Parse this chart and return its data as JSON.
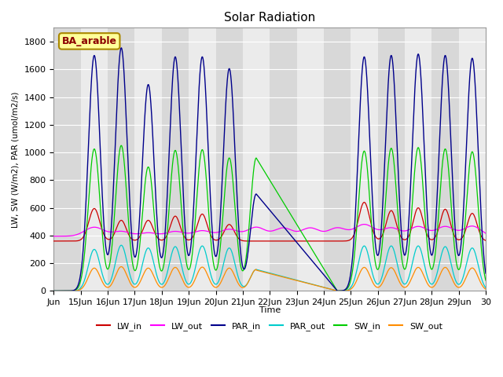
{
  "title": "Solar Radiation",
  "ylabel": "LW, SW (W/m2), PAR (umol/m2/s)",
  "xlabel": "Time",
  "annotation": "BA_arable",
  "ylim": [
    0,
    1900
  ],
  "xtick_labels": [
    "Jun",
    "15Jun",
    "16Jun",
    "17Jun",
    "18Jun",
    "19Jun",
    "20Jun",
    "21Jun",
    "22Jun",
    "23Jun",
    "24Jun",
    "25Jun",
    "26Jun",
    "27Jun",
    "28Jun",
    "29Jun",
    "30"
  ],
  "legend_entries": [
    {
      "label": "LW_in",
      "color": "#cc0000"
    },
    {
      "label": "LW_out",
      "color": "#ff00ff"
    },
    {
      "label": "PAR_in",
      "color": "#00008b"
    },
    {
      "label": "PAR_out",
      "color": "#00cccc"
    },
    {
      "label": "SW_in",
      "color": "#00cc00"
    },
    {
      "label": "SW_out",
      "color": "#ff8c00"
    }
  ],
  "bg_dark": "#d8d8d8",
  "bg_light": "#ebebeb",
  "annotation_bg": "#ffff99",
  "annotation_border": "#aa8800"
}
